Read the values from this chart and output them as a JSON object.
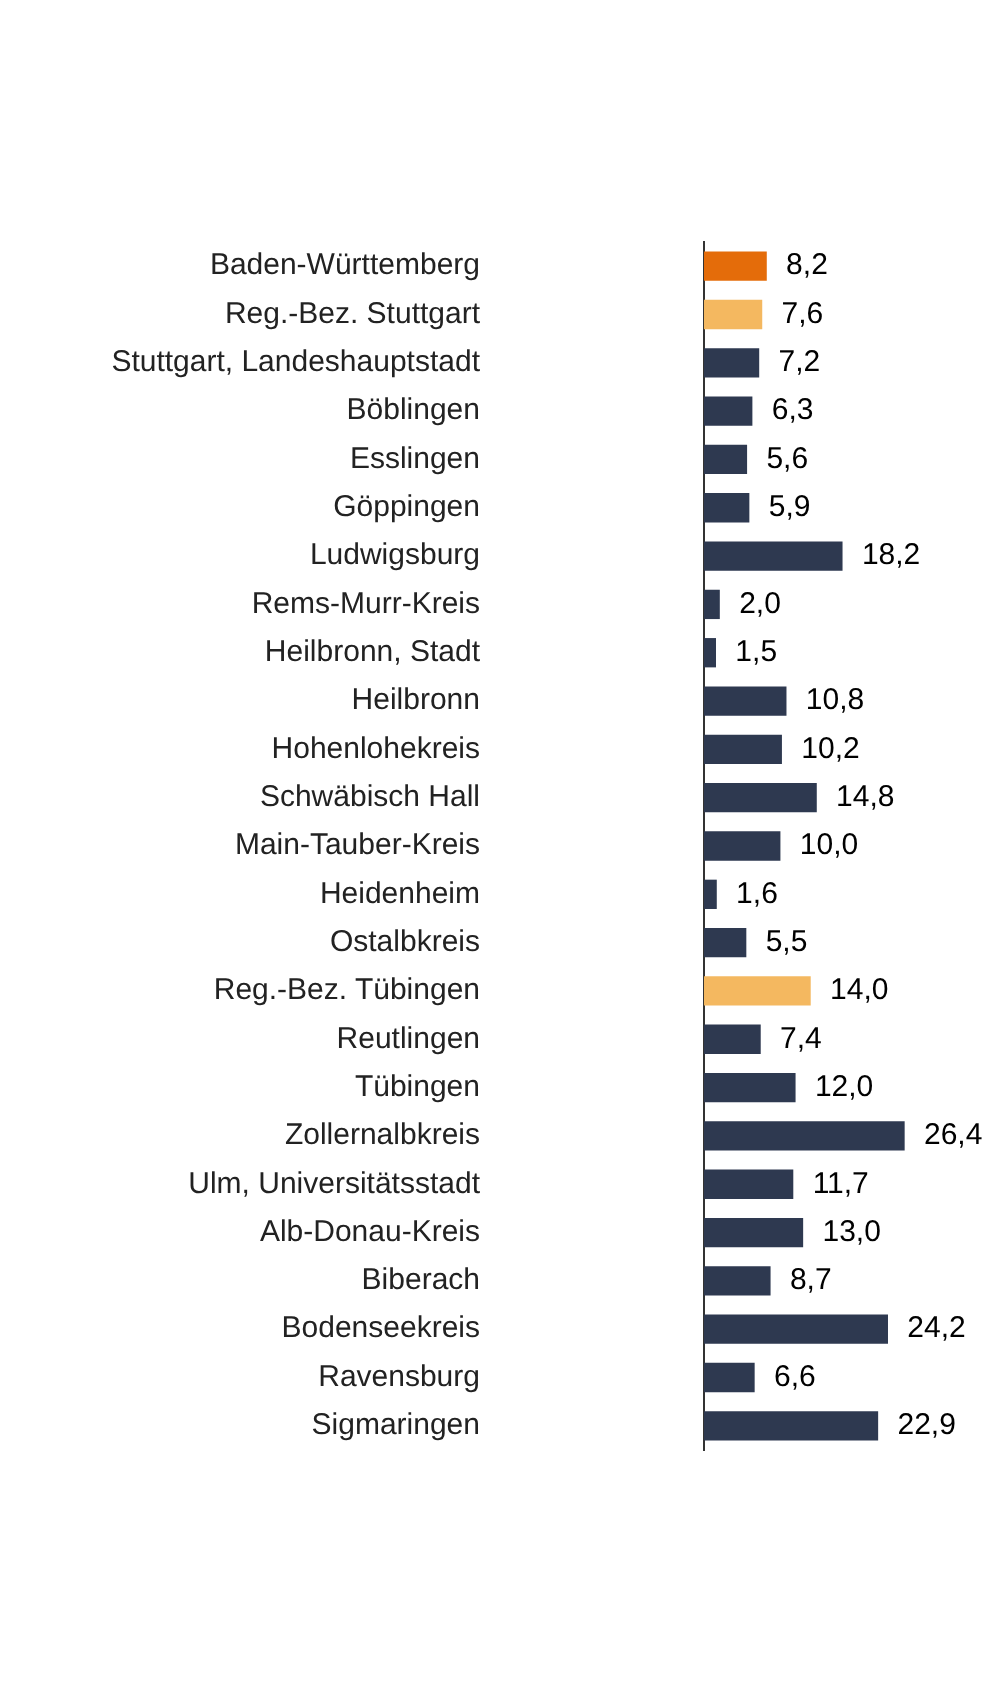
{
  "chart_data": {
    "type": "bar",
    "orientation": "horizontal",
    "categories": [
      "Baden-Württemberg",
      "Reg.-Bez. Stuttgart",
      "Stuttgart, Landeshauptstadt",
      "Böblingen",
      "Esslingen",
      "Göppingen",
      "Ludwigsburg",
      "Rems-Murr-Kreis",
      "Heilbronn, Stadt",
      "Heilbronn",
      "Hohenlohekreis",
      "Schwäbisch Hall",
      "Main-Tauber-Kreis",
      "Heidenheim",
      "Ostalbkreis",
      "Reg.-Bez. Tübingen",
      "Reutlingen",
      "Tübingen",
      "Zollernalbkreis",
      "Ulm, Universitätsstadt",
      "Alb-Donau-Kreis",
      "Biberach",
      "Bodenseekreis",
      "Ravensburg",
      "Sigmaringen"
    ],
    "values": [
      8.2,
      7.6,
      7.2,
      6.3,
      5.6,
      5.9,
      18.2,
      2.0,
      1.5,
      10.8,
      10.2,
      14.8,
      10.0,
      1.6,
      5.5,
      14.0,
      7.4,
      12.0,
      26.4,
      11.7,
      13.0,
      8.7,
      24.2,
      6.6,
      22.9
    ],
    "value_labels": [
      "8,2",
      "7,6",
      "7,2",
      "6,3",
      "5,6",
      "5,9",
      "18,2",
      "2,0",
      "1,5",
      "10,8",
      "10,2",
      "14,8",
      "10,0",
      "1,6",
      "5,5",
      "14,0",
      "7,4",
      "12,0",
      "26,4",
      "11,7",
      "13,0",
      "8,7",
      "24,2",
      "6,6",
      "22,9"
    ],
    "colors": [
      "#e46c0a",
      "#f4b860",
      "#2e3950",
      "#2e3950",
      "#2e3950",
      "#2e3950",
      "#2e3950",
      "#2e3950",
      "#2e3950",
      "#2e3950",
      "#2e3950",
      "#2e3950",
      "#2e3950",
      "#2e3950",
      "#2e3950",
      "#f4b860",
      "#2e3950",
      "#2e3950",
      "#2e3950",
      "#2e3950",
      "#2e3950",
      "#2e3950",
      "#2e3950",
      "#2e3950",
      "#2e3950"
    ]
  }
}
